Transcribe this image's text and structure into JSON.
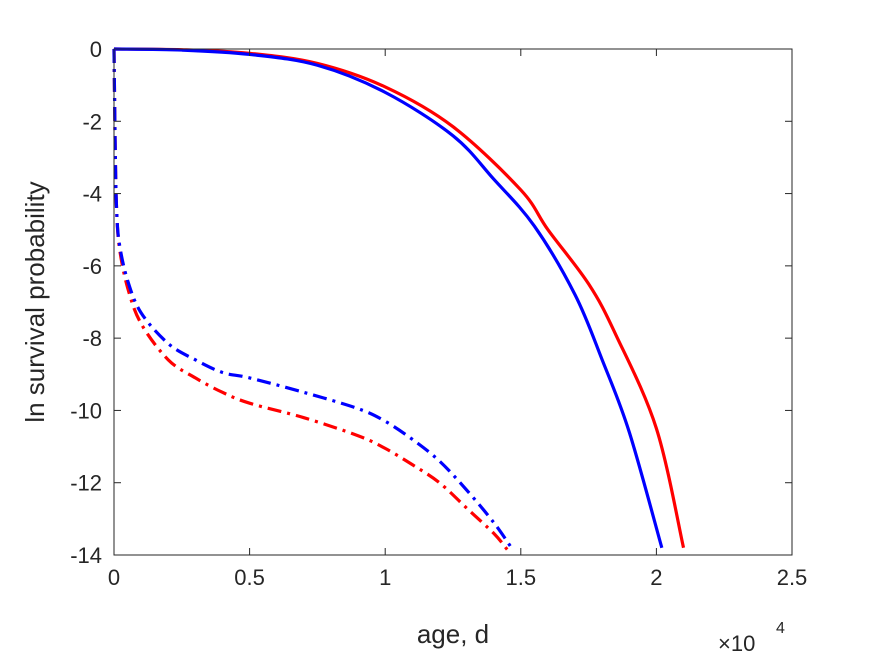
{
  "chart_data": {
    "type": "line",
    "title": "",
    "xlabel": "age, d",
    "ylabel": "ln survival probability",
    "x_exponent_label": "×10",
    "x_exponent_power": "4",
    "xlim": [
      0,
      2.5
    ],
    "ylim": [
      -14,
      0
    ],
    "xticks": [
      0,
      0.5,
      1,
      1.5,
      2,
      2.5
    ],
    "xtick_labels": [
      "0",
      "0.5",
      "1",
      "1.5",
      "2",
      "2.5"
    ],
    "yticks": [
      0,
      -2,
      -4,
      -6,
      -8,
      -10,
      -12,
      -14
    ],
    "ytick_labels": [
      "0",
      "-2",
      "-4",
      "-6",
      "-8",
      "-10",
      "-12",
      "-14"
    ],
    "grid": false,
    "legend": "none",
    "series": [
      {
        "color": "#ff0000",
        "style": "solid",
        "x": [
          0,
          0.25,
          0.5,
          0.75,
          1.0,
          1.25,
          1.5,
          1.6,
          1.75,
          1.85,
          2.0,
          2.1
        ],
        "y": [
          0,
          -0.02,
          -0.12,
          -0.4,
          -1.05,
          -2.15,
          -3.9,
          -5.0,
          -6.5,
          -7.9,
          -10.5,
          -13.8
        ]
      },
      {
        "color": "#0000ff",
        "style": "solid",
        "x": [
          0,
          0.25,
          0.5,
          0.75,
          1.0,
          1.25,
          1.4,
          1.55,
          1.7,
          1.8,
          1.9,
          2.02
        ],
        "y": [
          0,
          -0.03,
          -0.15,
          -0.45,
          -1.2,
          -2.4,
          -3.6,
          -4.9,
          -6.8,
          -8.6,
          -10.6,
          -13.8
        ]
      },
      {
        "color": "#ff0000",
        "style": "dashdot",
        "x": [
          0,
          0.005,
          0.01,
          0.02,
          0.05,
          0.1,
          0.2,
          0.3,
          0.4,
          0.5,
          0.7,
          0.9,
          1.0,
          1.1,
          1.2,
          1.3,
          1.4,
          1.45
        ],
        "y": [
          0,
          -3.0,
          -4.5,
          -5.5,
          -6.6,
          -7.6,
          -8.6,
          -9.1,
          -9.5,
          -9.8,
          -10.2,
          -10.7,
          -11.05,
          -11.5,
          -12.0,
          -12.7,
          -13.4,
          -13.85
        ]
      },
      {
        "color": "#0000ff",
        "style": "dashdot",
        "x": [
          0,
          0.005,
          0.01,
          0.02,
          0.05,
          0.1,
          0.2,
          0.3,
          0.4,
          0.5,
          0.7,
          0.9,
          1.0,
          1.1,
          1.2,
          1.3,
          1.4,
          1.47
        ],
        "y": [
          0,
          -3.0,
          -4.5,
          -5.4,
          -6.4,
          -7.3,
          -8.15,
          -8.6,
          -8.95,
          -9.1,
          -9.5,
          -9.95,
          -10.3,
          -10.8,
          -11.4,
          -12.2,
          -13.1,
          -13.85
        ]
      }
    ]
  }
}
